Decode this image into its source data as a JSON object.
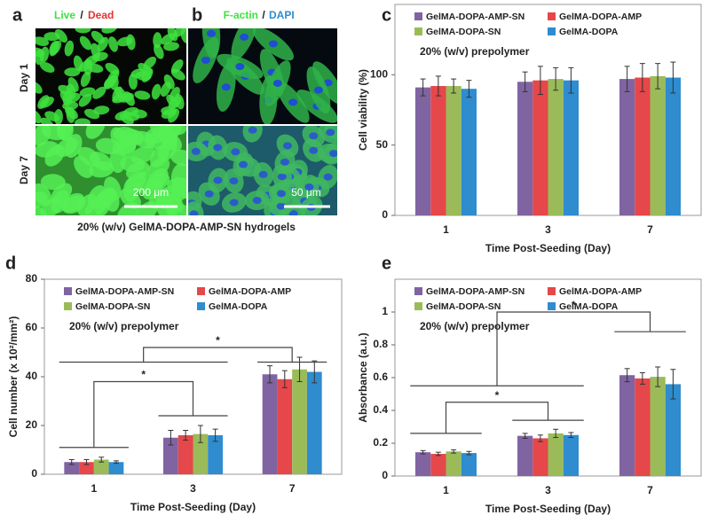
{
  "images": {
    "panel_a": {
      "label": "a",
      "title_live": "Live",
      "title_sep": "/",
      "title_dead": "Dead",
      "row_1": "Day 1",
      "row_2": "Day 7",
      "scale_bar": "200 μm"
    },
    "panel_b": {
      "label": "b",
      "title_factin": "F-actin",
      "title_sep": "/",
      "title_dapi": "DAPI",
      "scale_bar": "50 μm"
    },
    "caption": "20% (w/v) GelMA-DOPA-AMP-SN hydrogels"
  },
  "chart_data": [
    {
      "type": "bar",
      "panel_label": "c",
      "x_label": "Time Post-Seeding (Day)",
      "y_label": "Cell viability (%)",
      "categories": [
        "1",
        "3",
        "7"
      ],
      "ylim": [
        0,
        150
      ],
      "yticks": [
        0,
        50,
        100
      ],
      "annotations": [
        "20% (w/v) prepolymer"
      ],
      "series": [
        {
          "name": "GelMA-DOPA-AMP-SN",
          "color": "#8064a2",
          "values": [
            91,
            95,
            97
          ],
          "errors": [
            6,
            7,
            9
          ]
        },
        {
          "name": "GelMA-DOPA-AMP",
          "color": "#e5474a",
          "values": [
            92,
            96,
            98
          ],
          "errors": [
            7,
            10,
            10
          ]
        },
        {
          "name": "GelMA-DOPA-SN",
          "color": "#9bbb59",
          "values": [
            92,
            97,
            99
          ],
          "errors": [
            5,
            8,
            9
          ]
        },
        {
          "name": "GelMA-DOPA",
          "color": "#2e8ccf",
          "values": [
            90,
            96,
            98
          ],
          "errors": [
            6,
            9,
            11
          ]
        }
      ]
    },
    {
      "type": "bar",
      "panel_label": "d",
      "x_label": "Time Post-Seeding (Day)",
      "y_label": "Cell number (x 10²/mm²)",
      "categories": [
        "1",
        "3",
        "7"
      ],
      "ylim": [
        0,
        80
      ],
      "yticks": [
        0,
        20,
        40,
        60,
        80
      ],
      "annotations": [
        "20% (w/v) prepolymer",
        "*",
        "*"
      ],
      "series": [
        {
          "name": "GelMA-DOPA-AMP-SN",
          "color": "#8064a2",
          "values": [
            5,
            15,
            41
          ],
          "errors": [
            1,
            3,
            3.5
          ]
        },
        {
          "name": "GelMA-DOPA-AMP",
          "color": "#e5474a",
          "values": [
            5,
            16,
            39
          ],
          "errors": [
            1,
            2,
            3.5
          ]
        },
        {
          "name": "GelMA-DOPA-SN",
          "color": "#9bbb59",
          "values": [
            6,
            16.5,
            43
          ],
          "errors": [
            1,
            3.5,
            5
          ]
        },
        {
          "name": "GelMA-DOPA",
          "color": "#2e8ccf",
          "values": [
            5,
            16,
            42
          ],
          "errors": [
            0.5,
            2.5,
            4.5
          ]
        }
      ]
    },
    {
      "type": "bar",
      "panel_label": "e",
      "x_label": "Time Post-Seeding (Day)",
      "y_label": "Absorbance (a.u.)",
      "categories": [
        "1",
        "3",
        "7"
      ],
      "ylim": [
        0,
        1.2
      ],
      "yticks": [
        0,
        0.2,
        0.4,
        0.6,
        0.8,
        1
      ],
      "annotations": [
        "20% (w/v) prepolymer",
        "*",
        "*"
      ],
      "series": [
        {
          "name": "GelMA-DOPA-AMP-SN",
          "color": "#8064a2",
          "values": [
            0.145,
            0.245,
            0.615
          ],
          "errors": [
            0.01,
            0.015,
            0.04
          ]
        },
        {
          "name": "GelMA-DOPA-AMP",
          "color": "#e5474a",
          "values": [
            0.135,
            0.23,
            0.595
          ],
          "errors": [
            0.01,
            0.02,
            0.035
          ]
        },
        {
          "name": "GelMA-DOPA-SN",
          "color": "#9bbb59",
          "values": [
            0.15,
            0.26,
            0.605
          ],
          "errors": [
            0.01,
            0.025,
            0.06
          ]
        },
        {
          "name": "GelMA-DOPA",
          "color": "#2e8ccf",
          "values": [
            0.14,
            0.25,
            0.56
          ],
          "errors": [
            0.01,
            0.015,
            0.09
          ]
        }
      ]
    }
  ]
}
